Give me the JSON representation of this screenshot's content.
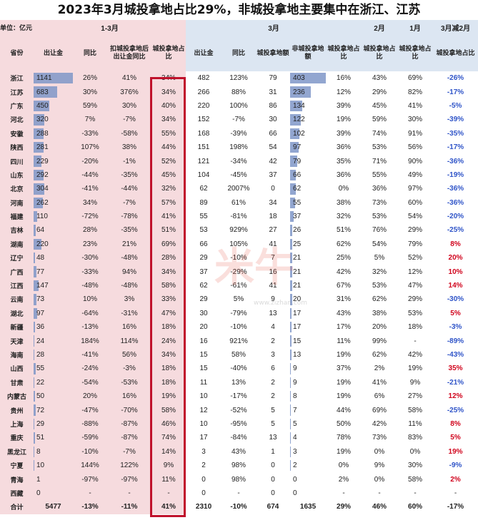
{
  "title": "2023年3月城投拿地占比29%，非城投拿地主要集中在浙江、江苏",
  "unit_label": "单位：亿元",
  "group_headers": {
    "q1": "1-3月",
    "march": "3月",
    "feb": "2月",
    "jan": "1月",
    "diff": "3月减2月"
  },
  "col_headers": {
    "province": "省份",
    "q1_amount": "出让金",
    "q1_yoy": "同比",
    "q1_ex_yoy": "扣城投拿地后出让金同比",
    "q1_share": "城投拿地占比",
    "m_amount": "出让金",
    "m_yoy": "同比",
    "m_chengtou": "城投拿地额",
    "m_non": "非城投拿地额",
    "m_share": "城投拿地占比",
    "feb_share": "城投拿地占比",
    "jan_share": "城投拿地占比",
    "diff": "城投拿地占比"
  },
  "rows": [
    {
      "p": "浙江",
      "a": "1141",
      "y": "26%",
      "e": "41%",
      "s": "34%",
      "ma": "482",
      "my": "123%",
      "mc": "79",
      "mn": "403",
      "ms": "16%",
      "f": "43%",
      "j": "69%",
      "d": "-26%"
    },
    {
      "p": "江苏",
      "a": "683",
      "y": "30%",
      "e": "376%",
      "s": "34%",
      "ma": "266",
      "my": "88%",
      "mc": "31",
      "mn": "236",
      "ms": "12%",
      "f": "29%",
      "j": "82%",
      "d": "-17%"
    },
    {
      "p": "广东",
      "a": "450",
      "y": "59%",
      "e": "30%",
      "s": "40%",
      "ma": "220",
      "my": "100%",
      "mc": "86",
      "mn": "134",
      "ms": "39%",
      "f": "45%",
      "j": "41%",
      "d": "-5%"
    },
    {
      "p": "河北",
      "a": "320",
      "y": "7%",
      "e": "-7%",
      "s": "34%",
      "ma": "152",
      "my": "-7%",
      "mc": "30",
      "mn": "122",
      "ms": "19%",
      "f": "59%",
      "j": "30%",
      "d": "-39%"
    },
    {
      "p": "安徽",
      "a": "288",
      "y": "-33%",
      "e": "-58%",
      "s": "55%",
      "ma": "168",
      "my": "-39%",
      "mc": "66",
      "mn": "102",
      "ms": "39%",
      "f": "74%",
      "j": "91%",
      "d": "-35%"
    },
    {
      "p": "陕西",
      "a": "281",
      "y": "107%",
      "e": "38%",
      "s": "44%",
      "ma": "151",
      "my": "198%",
      "mc": "54",
      "mn": "97",
      "ms": "36%",
      "f": "53%",
      "j": "56%",
      "d": "-17%"
    },
    {
      "p": "四川",
      "a": "229",
      "y": "-20%",
      "e": "-1%",
      "s": "52%",
      "ma": "121",
      "my": "-34%",
      "mc": "42",
      "mn": "79",
      "ms": "35%",
      "f": "71%",
      "j": "90%",
      "d": "-36%"
    },
    {
      "p": "山东",
      "a": "292",
      "y": "-44%",
      "e": "-35%",
      "s": "45%",
      "ma": "104",
      "my": "-45%",
      "mc": "37",
      "mn": "66",
      "ms": "36%",
      "f": "55%",
      "j": "49%",
      "d": "-19%"
    },
    {
      "p": "北京",
      "a": "304",
      "y": "-41%",
      "e": "-44%",
      "s": "32%",
      "ma": "62",
      "my": "2007%",
      "mc": "0",
      "mn": "62",
      "ms": "0%",
      "f": "36%",
      "j": "97%",
      "d": "-36%"
    },
    {
      "p": "河南",
      "a": "262",
      "y": "34%",
      "e": "-7%",
      "s": "57%",
      "ma": "89",
      "my": "61%",
      "mc": "34",
      "mn": "55",
      "ms": "38%",
      "f": "73%",
      "j": "60%",
      "d": "-36%"
    },
    {
      "p": "福建",
      "a": "110",
      "y": "-72%",
      "e": "-78%",
      "s": "41%",
      "ma": "55",
      "my": "-81%",
      "mc": "18",
      "mn": "37",
      "ms": "32%",
      "f": "53%",
      "j": "54%",
      "d": "-20%"
    },
    {
      "p": "吉林",
      "a": "64",
      "y": "28%",
      "e": "-35%",
      "s": "51%",
      "ma": "53",
      "my": "929%",
      "mc": "27",
      "mn": "26",
      "ms": "51%",
      "f": "76%",
      "j": "29%",
      "d": "-25%"
    },
    {
      "p": "湖南",
      "a": "220",
      "y": "23%",
      "e": "21%",
      "s": "69%",
      "ma": "66",
      "my": "105%",
      "mc": "41",
      "mn": "25",
      "ms": "62%",
      "f": "54%",
      "j": "79%",
      "d": "8%"
    },
    {
      "p": "辽宁",
      "a": "48",
      "y": "-30%",
      "e": "-48%",
      "s": "28%",
      "ma": "29",
      "my": "-10%",
      "mc": "7",
      "mn": "21",
      "ms": "25%",
      "f": "5%",
      "j": "52%",
      "d": "20%"
    },
    {
      "p": "广西",
      "a": "77",
      "y": "-33%",
      "e": "94%",
      "s": "34%",
      "ma": "37",
      "my": "-29%",
      "mc": "16",
      "mn": "21",
      "ms": "42%",
      "f": "32%",
      "j": "12%",
      "d": "10%"
    },
    {
      "p": "江西",
      "a": "147",
      "y": "-48%",
      "e": "-48%",
      "s": "58%",
      "ma": "62",
      "my": "-61%",
      "mc": "41",
      "mn": "21",
      "ms": "67%",
      "f": "53%",
      "j": "47%",
      "d": "14%"
    },
    {
      "p": "云南",
      "a": "73",
      "y": "10%",
      "e": "3%",
      "s": "33%",
      "ma": "29",
      "my": "5%",
      "mc": "9",
      "mn": "20",
      "ms": "31%",
      "f": "62%",
      "j": "29%",
      "d": "-30%"
    },
    {
      "p": "湖北",
      "a": "97",
      "y": "-64%",
      "e": "-31%",
      "s": "47%",
      "ma": "30",
      "my": "-79%",
      "mc": "13",
      "mn": "17",
      "ms": "43%",
      "f": "38%",
      "j": "53%",
      "d": "5%"
    },
    {
      "p": "新疆",
      "a": "36",
      "y": "-13%",
      "e": "16%",
      "s": "18%",
      "ma": "20",
      "my": "-10%",
      "mc": "4",
      "mn": "17",
      "ms": "17%",
      "f": "20%",
      "j": "18%",
      "d": "-3%"
    },
    {
      "p": "天津",
      "a": "24",
      "y": "184%",
      "e": "114%",
      "s": "24%",
      "ma": "16",
      "my": "921%",
      "mc": "2",
      "mn": "15",
      "ms": "11%",
      "f": "99%",
      "j": "-",
      "d": "-89%"
    },
    {
      "p": "海南",
      "a": "28",
      "y": "-41%",
      "e": "56%",
      "s": "34%",
      "ma": "15",
      "my": "58%",
      "mc": "3",
      "mn": "13",
      "ms": "19%",
      "f": "62%",
      "j": "42%",
      "d": "-43%"
    },
    {
      "p": "山西",
      "a": "55",
      "y": "-24%",
      "e": "-3%",
      "s": "18%",
      "ma": "15",
      "my": "-40%",
      "mc": "6",
      "mn": "9",
      "ms": "37%",
      "f": "2%",
      "j": "19%",
      "d": "35%"
    },
    {
      "p": "甘肃",
      "a": "22",
      "y": "-54%",
      "e": "-53%",
      "s": "18%",
      "ma": "11",
      "my": "13%",
      "mc": "2",
      "mn": "9",
      "ms": "19%",
      "f": "41%",
      "j": "9%",
      "d": "-21%"
    },
    {
      "p": "内蒙古",
      "a": "50",
      "y": "20%",
      "e": "16%",
      "s": "19%",
      "ma": "10",
      "my": "-17%",
      "mc": "2",
      "mn": "8",
      "ms": "19%",
      "f": "6%",
      "j": "27%",
      "d": "12%"
    },
    {
      "p": "贵州",
      "a": "72",
      "y": "-47%",
      "e": "-70%",
      "s": "58%",
      "ma": "12",
      "my": "-52%",
      "mc": "5",
      "mn": "7",
      "ms": "44%",
      "f": "69%",
      "j": "58%",
      "d": "-25%"
    },
    {
      "p": "上海",
      "a": "29",
      "y": "-88%",
      "e": "-87%",
      "s": "46%",
      "ma": "10",
      "my": "-95%",
      "mc": "5",
      "mn": "5",
      "ms": "50%",
      "f": "42%",
      "j": "11%",
      "d": "8%"
    },
    {
      "p": "重庆",
      "a": "51",
      "y": "-59%",
      "e": "-87%",
      "s": "74%",
      "ma": "17",
      "my": "-84%",
      "mc": "13",
      "mn": "4",
      "ms": "78%",
      "f": "73%",
      "j": "83%",
      "d": "5%"
    },
    {
      "p": "黑龙江",
      "a": "8",
      "y": "-10%",
      "e": "-7%",
      "s": "14%",
      "ma": "3",
      "my": "43%",
      "mc": "1",
      "mn": "3",
      "ms": "19%",
      "f": "0%",
      "j": "0%",
      "d": "19%"
    },
    {
      "p": "宁夏",
      "a": "10",
      "y": "144%",
      "e": "122%",
      "s": "9%",
      "ma": "2",
      "my": "98%",
      "mc": "0",
      "mn": "2",
      "ms": "0%",
      "f": "9%",
      "j": "30%",
      "d": "-9%"
    },
    {
      "p": "青海",
      "a": "1",
      "y": "-97%",
      "e": "-97%",
      "s": "11%",
      "ma": "0",
      "my": "98%",
      "mc": "0",
      "mn": "0",
      "ms": "2%",
      "f": "0%",
      "j": "58%",
      "d": "2%"
    },
    {
      "p": "西藏",
      "a": "0",
      "y": "-",
      "e": "-",
      "s": "-",
      "ma": "0",
      "my": "-",
      "mc": "0",
      "mn": "0",
      "ms": "-",
      "f": "-",
      "j": "-",
      "d": "-"
    }
  ],
  "total": {
    "p": "合计",
    "a": "5477",
    "y": "-13%",
    "e": "-11%",
    "s": "41%",
    "ma": "2310",
    "my": "-10%",
    "mc": "674",
    "mn": "1635",
    "ms": "29%",
    "f": "46%",
    "j": "60%",
    "d": "-17%"
  },
  "watermark": "米牛",
  "watermark_sub": "www.zizhan.com",
  "colors": {
    "pink": "#f6dbde",
    "blue": "#dce6f2",
    "highlight": "#c0112b",
    "neg": "#2f54c8",
    "pos": "#d0021b",
    "bar": "#7f96c8"
  }
}
